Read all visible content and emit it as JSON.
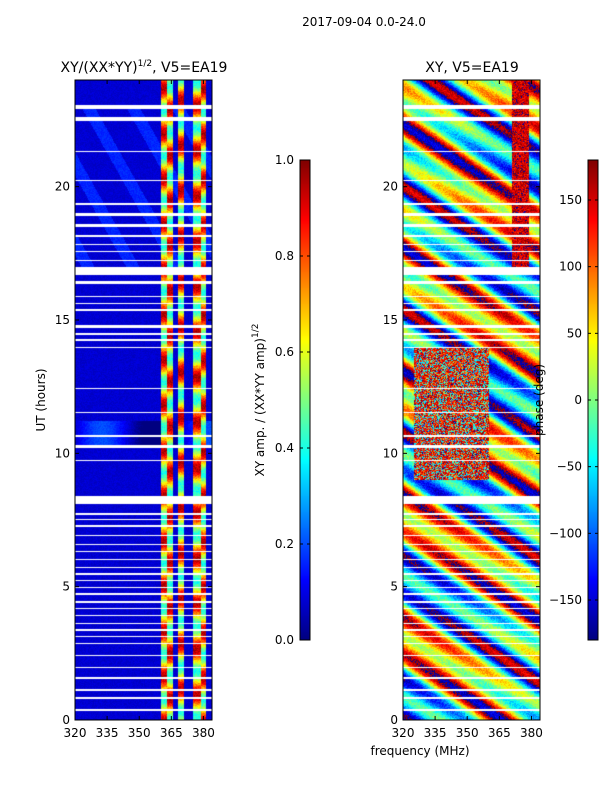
{
  "figure": {
    "suptitle": "2017-09-04 0.0-24.0",
    "xlabel_shared": "frequency (MHz)"
  },
  "chart_data": [
    {
      "type": "heatmap",
      "title": "XY/(XX*YY)",
      "title_exponent": "1/2",
      "title_suffix": ", V5=EA19",
      "xlabel": "",
      "ylabel": "UT (hours)",
      "xlim": [
        320,
        384
      ],
      "ylim": [
        0,
        24
      ],
      "xticks": [
        320,
        335,
        350,
        365,
        380
      ],
      "yticks": [
        0,
        5,
        10,
        15,
        20
      ],
      "colormap": "jet",
      "colorbar": {
        "label": "XY amp. / (XX*YY amp)",
        "label_exponent": "1/2",
        "range": [
          0.0,
          1.0
        ],
        "ticks": [
          "0.0",
          "0.2",
          "0.4",
          "0.6",
          "0.8",
          "1.0"
        ],
        "tick_values": [
          0.0,
          0.2,
          0.4,
          0.6,
          0.8,
          1.0
        ]
      },
      "hot_bands_mhz": [
        [
          360,
          363
        ],
        [
          363,
          366
        ],
        [
          368,
          371
        ],
        [
          375,
          379
        ],
        [
          379,
          381
        ]
      ]
    },
    {
      "type": "heatmap",
      "title": "XY, V5=EA19",
      "xlabel": "frequency (MHz)",
      "ylabel": "",
      "xlim": [
        320,
        384
      ],
      "ylim": [
        0,
        24
      ],
      "xticks": [
        320,
        335,
        350,
        365,
        380
      ],
      "yticks": [
        0,
        5,
        10,
        15,
        20
      ],
      "colormap": "jet",
      "colorbar": {
        "label": "phase (deg)",
        "range": [
          -180,
          180
        ],
        "ticks": [
          "150",
          "100",
          "50",
          "0",
          "−50",
          "−100",
          "−150"
        ],
        "tick_values": [
          150,
          100,
          50,
          0,
          -50,
          -100,
          -150
        ]
      }
    }
  ],
  "gaps_hours": [
    [
      22.45,
      22.6
    ],
    [
      22.9,
      23.05
    ],
    [
      21.3,
      21.35
    ],
    [
      20.2,
      20.25
    ],
    [
      19.3,
      19.4
    ],
    [
      18.9,
      19.0
    ],
    [
      18.5,
      18.6
    ],
    [
      18.1,
      18.2
    ],
    [
      17.8,
      17.85
    ],
    [
      17.55,
      17.6
    ],
    [
      17.2,
      17.25
    ],
    [
      16.7,
      17.0
    ],
    [
      16.35,
      16.45
    ],
    [
      15.85,
      15.9
    ],
    [
      15.6,
      15.65
    ],
    [
      15.35,
      15.4
    ],
    [
      14.7,
      14.8
    ],
    [
      14.45,
      14.5
    ],
    [
      14.2,
      14.3
    ],
    [
      13.95,
      14.0
    ],
    [
      12.4,
      12.45
    ],
    [
      11.5,
      11.55
    ],
    [
      10.6,
      10.7
    ],
    [
      10.2,
      10.3
    ],
    [
      9.7,
      9.75
    ],
    [
      8.1,
      8.4
    ],
    [
      7.7,
      7.75
    ],
    [
      7.5,
      7.55
    ],
    [
      7.25,
      7.3
    ],
    [
      6.9,
      6.95
    ],
    [
      6.55,
      6.6
    ],
    [
      6.3,
      6.35
    ],
    [
      6.0,
      6.05
    ],
    [
      5.7,
      5.75
    ],
    [
      5.45,
      5.5
    ],
    [
      5.2,
      5.25
    ],
    [
      4.95,
      5.0
    ],
    [
      4.7,
      4.75
    ],
    [
      4.4,
      4.45
    ],
    [
      4.15,
      4.2
    ],
    [
      3.9,
      3.95
    ],
    [
      3.6,
      3.65
    ],
    [
      3.35,
      3.4
    ],
    [
      3.1,
      3.15
    ],
    [
      2.85,
      2.9
    ],
    [
      2.4,
      2.45
    ],
    [
      1.95,
      2.0
    ],
    [
      1.55,
      1.6
    ],
    [
      1.1,
      1.15
    ],
    [
      0.8,
      0.85
    ],
    [
      0.35,
      0.4
    ]
  ]
}
